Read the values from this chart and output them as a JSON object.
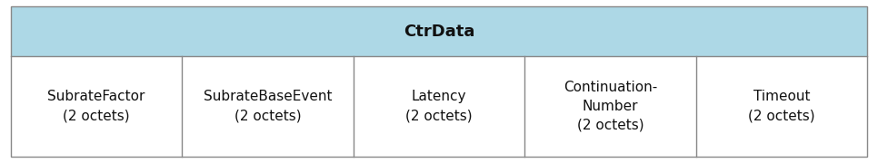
{
  "title": "CtrData",
  "title_bg": "#ADD8E6",
  "cell_bg": "#FFFFFF",
  "border_color": "#888888",
  "title_fontsize": 13,
  "cell_fontsize": 11,
  "columns": [
    {
      "lines": [
        "SubrateFactor",
        "(2 octets)"
      ]
    },
    {
      "lines": [
        "SubrateBaseEvent",
        "(2 octets)"
      ]
    },
    {
      "lines": [
        "Latency",
        "(2 octets)"
      ]
    },
    {
      "lines": [
        "Continuation-",
        "Number",
        "(2 octets)"
      ]
    },
    {
      "lines": [
        "Timeout",
        "(2 octets)"
      ]
    }
  ],
  "fig_width": 9.66,
  "fig_height": 1.8,
  "dpi": 100
}
